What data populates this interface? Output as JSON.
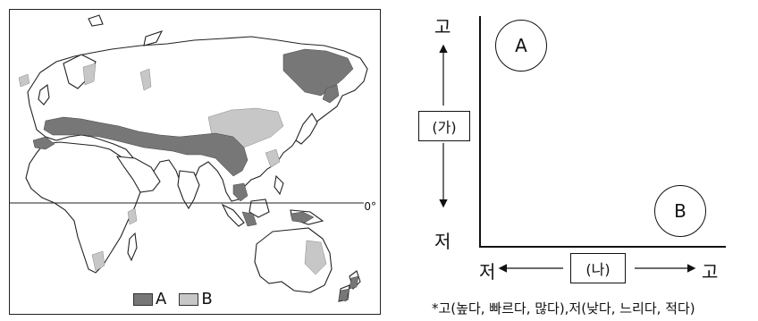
{
  "map": {
    "equator_label": "0°",
    "legend": [
      {
        "label": "A",
        "color": "#777777"
      },
      {
        "label": "B",
        "color": "#c7c7c7"
      }
    ]
  },
  "graph": {
    "y_axis": {
      "high": "고",
      "low": "저",
      "box": "(가)"
    },
    "x_axis": {
      "high": "고",
      "low": "저",
      "box": "(나)"
    },
    "points": [
      "A",
      "B"
    ]
  },
  "note": "*고(높다, 빠르다, 많다),저(낮다, 느리다, 적다)"
}
